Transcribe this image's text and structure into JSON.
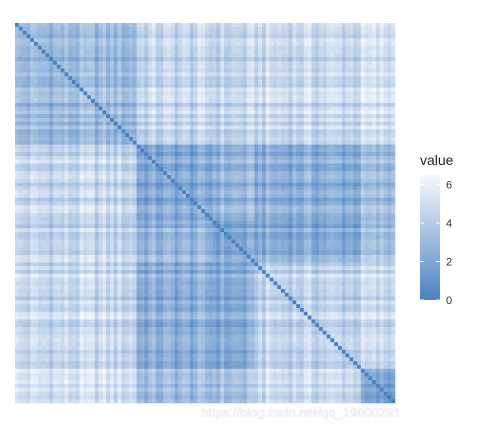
{
  "chart_data": {
    "type": "heatmap",
    "title": "",
    "xlabel": "",
    "ylabel": "",
    "legend": {
      "title": "value",
      "ticks": [
        "0",
        "2",
        "4",
        "6"
      ],
      "min": 0,
      "max": 6.5,
      "placement": "right"
    },
    "color_scale": {
      "low": "#4a82c1",
      "high": "#f7f9fd"
    },
    "matrix_size": 100,
    "diagonal_value": 0,
    "clusters": [
      {
        "start": 0,
        "end": 32
      },
      {
        "start": 32,
        "end": 52
      },
      {
        "start": 52,
        "end": 63
      },
      {
        "start": 63,
        "end": 91
      },
      {
        "start": 91,
        "end": 100
      }
    ],
    "cluster_block_values": [
      [
        2.8,
        4.3,
        4.2,
        4.5,
        4.8
      ],
      [
        4.3,
        1.8,
        2.5,
        2.2,
        2.8
      ],
      [
        4.2,
        2.5,
        1.7,
        2.0,
        3.0
      ],
      [
        4.5,
        2.2,
        2.0,
        4.3,
        4.5
      ],
      [
        4.8,
        2.8,
        3.0,
        4.5,
        1.3
      ]
    ],
    "grid": false
  },
  "watermark": "https://blog.csdn.net/qq_19600291"
}
